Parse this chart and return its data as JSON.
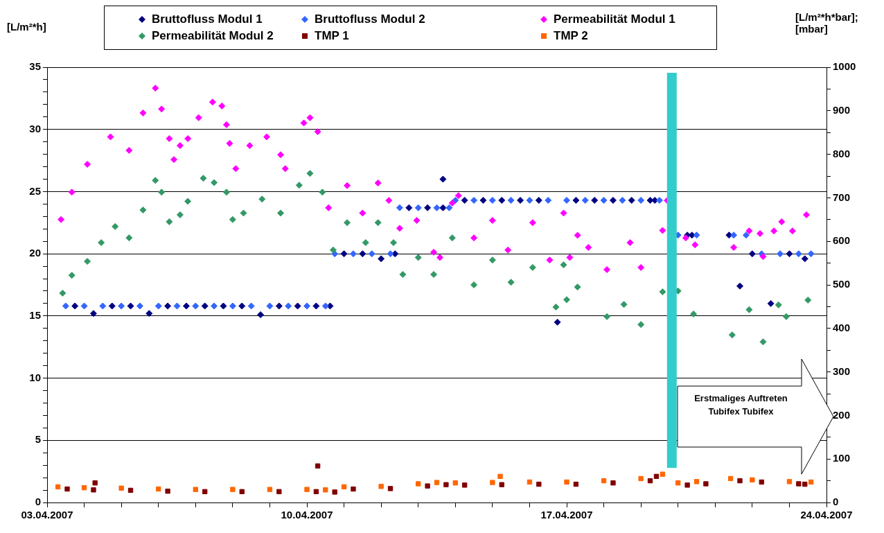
{
  "chart_data": {
    "type": "scatter",
    "ylabel": "[L/m²*h]",
    "y2label": "[L/m²*h*bar]; [mbar]",
    "legend": "top",
    "grid": "y",
    "annotations": [
      "Erstmaliges Auftreten Tubifex Tubifex"
    ],
    "ref_lines": [
      {
        "axis": "x",
        "value": "2007-04-19T20:00",
        "color": "#33cccc"
      }
    ],
    "xlim": [
      "2007-04-03",
      "2007-04-24"
    ],
    "xticks": [
      {
        "value": "2007-04-03",
        "label": "03.04.2007"
      },
      {
        "value": "2007-04-04",
        "label": null
      },
      {
        "value": "2007-04-05",
        "label": null
      },
      {
        "value": "2007-04-06",
        "label": null
      },
      {
        "value": "2007-04-07",
        "label": null
      },
      {
        "value": "2007-04-08",
        "label": null
      },
      {
        "value": "2007-04-09",
        "label": null
      },
      {
        "value": "2007-04-10",
        "label": "10.04.2007"
      },
      {
        "value": "2007-04-11",
        "label": null
      },
      {
        "value": "2007-04-12",
        "label": null
      },
      {
        "value": "2007-04-13",
        "label": null
      },
      {
        "value": "2007-04-14",
        "label": null
      },
      {
        "value": "2007-04-15",
        "label": null
      },
      {
        "value": "2007-04-16",
        "label": null
      },
      {
        "value": "2007-04-17",
        "label": "17.04.2007"
      },
      {
        "value": "2007-04-18",
        "label": null
      },
      {
        "value": "2007-04-19",
        "label": null
      },
      {
        "value": "2007-04-20",
        "label": null
      },
      {
        "value": "2007-04-21",
        "label": null
      },
      {
        "value": "2007-04-22",
        "label": null
      },
      {
        "value": "2007-04-23",
        "label": null
      },
      {
        "value": "2007-04-24",
        "label": "24.04.2007"
      }
    ],
    "ylim": [
      0,
      35
    ],
    "yticks": [
      0,
      {
        "value": 1,
        "label": null
      },
      {
        "value": 2,
        "label": null
      },
      {
        "value": 3,
        "label": null
      },
      {
        "value": 4,
        "label": null
      },
      5,
      {
        "value": 6,
        "label": null
      },
      {
        "value": 7,
        "label": null
      },
      {
        "value": 8,
        "label": null
      },
      {
        "value": 9,
        "label": null
      },
      10,
      {
        "value": 11,
        "label": null
      },
      {
        "value": 12,
        "label": null
      },
      {
        "value": 13,
        "label": null
      },
      {
        "value": 14,
        "label": null
      },
      15,
      {
        "value": 16,
        "label": null
      },
      {
        "value": 17,
        "label": null
      },
      {
        "value": 18,
        "label": null
      },
      {
        "value": 19,
        "label": null
      },
      20,
      {
        "value": 21,
        "label": null
      },
      {
        "value": 22,
        "label": null
      },
      {
        "value": 23,
        "label": null
      },
      {
        "value": 24,
        "label": null
      },
      25,
      {
        "value": 26,
        "label": null
      },
      {
        "value": 27,
        "label": null
      },
      {
        "value": 28,
        "label": null
      },
      {
        "value": 29,
        "label": null
      },
      30,
      {
        "value": 31,
        "label": null
      },
      {
        "value": 32,
        "label": null
      },
      {
        "value": 33,
        "label": null
      },
      {
        "value": 34,
        "label": null
      },
      35
    ],
    "y2lim": [
      0,
      1000
    ],
    "y2ticks": [
      0,
      {
        "value": 50,
        "label": null
      },
      100,
      {
        "value": 150,
        "label": null
      },
      200,
      {
        "value": 250,
        "label": null
      },
      300,
      {
        "value": 350,
        "label": null
      },
      400,
      {
        "value": 450,
        "label": null
      },
      500,
      {
        "value": 550,
        "label": null
      },
      600,
      {
        "value": 650,
        "label": null
      },
      700,
      {
        "value": 750,
        "label": null
      },
      800,
      {
        "value": 850,
        "label": null
      },
      900,
      {
        "value": 950,
        "label": null
      },
      1000
    ],
    "x": [
      "2007-04-03T12:00",
      "2007-04-04T00:00",
      "2007-04-04T12:00",
      "2007-04-05T00:00",
      "2007-04-05T12:00",
      "2007-04-06T00:00",
      "2007-04-06T12:00",
      "2007-04-07T00:00",
      "2007-04-07T12:00",
      "2007-04-08T00:00",
      "2007-04-08T12:00",
      "2007-04-09T00:00",
      "2007-04-09T12:00",
      "2007-04-10T00:00",
      "2007-04-10T12:00",
      "2007-04-10T18:00",
      "2007-04-11T06:00",
      "2007-04-11T18:00",
      "2007-04-12T06:00",
      "2007-04-12T12:00",
      "2007-04-13T00:00",
      "2007-04-13T12:00",
      "2007-04-13T20:00",
      "2007-04-14T00:00",
      "2007-04-14T12:00",
      "2007-04-15T00:00",
      "2007-04-15T12:00",
      "2007-04-16T00:00",
      "2007-04-16T12:00",
      "2007-04-17T00:00",
      "2007-04-17T12:00",
      "2007-04-18T00:00",
      "2007-04-18T12:00",
      "2007-04-19T00:00",
      "2007-04-19T12:00",
      "2007-04-20T00:00",
      "2007-04-20T12:00",
      "2007-04-21T12:00",
      "2007-04-21T20:00",
      "2007-04-22T06:00",
      "2007-04-22T18:00",
      "2007-04-23T06:00",
      "2007-04-23T14:00"
    ],
    "series": [
      {
        "name": "Bruttofluss Modul 1",
        "color": "#000080",
        "marker": "diamond",
        "x": [
          "2007-04-03T18:00",
          "2007-04-04T06:00",
          "2007-04-04T18:00",
          "2007-04-05T06:00",
          "2007-04-05T18:00",
          "2007-04-06T06:00",
          "2007-04-06T18:00",
          "2007-04-07T06:00",
          "2007-04-07T18:00",
          "2007-04-08T06:00",
          "2007-04-08T18:00",
          "2007-04-09T06:00",
          "2007-04-09T18:00",
          "2007-04-10T06:00",
          "2007-04-10T15:00",
          "2007-04-11T00:00",
          "2007-04-11T12:00",
          "2007-04-12T00:00",
          "2007-04-12T09:00",
          "2007-04-12T18:00",
          "2007-04-13T06:00",
          "2007-04-13T16:00",
          "2007-04-13T16:00",
          "2007-04-14T06:00",
          "2007-04-14T18:00",
          "2007-04-15T06:00",
          "2007-04-15T18:00",
          "2007-04-16T06:00",
          "2007-04-16T18:00",
          "2007-04-17T06:00",
          "2007-04-17T18:00",
          "2007-04-18T06:00",
          "2007-04-18T18:00",
          "2007-04-19T06:00",
          "2007-04-19T09:00",
          "2007-04-20T06:00",
          "2007-04-20T09:00",
          "2007-04-21T09:00",
          "2007-04-21T16:00",
          "2007-04-22T00:00",
          "2007-04-22T12:00",
          "2007-04-23T00:00",
          "2007-04-23T10:00"
        ],
        "values": [
          15.8,
          15.2,
          15.8,
          15.8,
          15.2,
          15.8,
          15.8,
          15.8,
          15.8,
          15.8,
          15.1,
          15.8,
          15.8,
          15.8,
          15.8,
          20.0,
          20.0,
          19.6,
          20.0,
          23.7,
          23.7,
          26.0,
          23.7,
          24.3,
          24.3,
          24.3,
          24.3,
          24.3,
          14.5,
          24.3,
          24.3,
          24.3,
          24.3,
          24.3,
          24.3,
          21.5,
          21.5,
          21.5,
          17.4,
          20.0,
          16.0,
          20.0,
          19.6
        ]
      },
      {
        "name": "Bruttofluss Modul 2",
        "color": "#3366ff",
        "marker": "diamond",
        "values": [
          15.8,
          15.8,
          15.8,
          15.8,
          15.8,
          15.8,
          15.8,
          15.8,
          15.8,
          15.8,
          15.8,
          15.8,
          15.8,
          15.8,
          15.8,
          20.0,
          20.0,
          20.0,
          20.0,
          23.7,
          23.7,
          23.7,
          23.7,
          24.3,
          24.3,
          24.3,
          24.3,
          24.3,
          24.3,
          24.3,
          24.3,
          24.3,
          24.3,
          24.3,
          24.3,
          21.5,
          21.5,
          21.5,
          21.5,
          20.0,
          20.0,
          20.0,
          20.0
        ]
      },
      {
        "name": "Permeabilität Modul 1",
        "color": "#ff00ff",
        "marker": "diamond",
        "axis": "y2",
        "x": [
          "2007-04-03T09:00",
          "2007-04-03T16:00",
          "2007-04-04T02:00",
          "2007-04-04T17:00",
          "2007-04-05T05:00",
          "2007-04-05T14:00",
          "2007-04-05T22:00",
          "2007-04-06T02:00",
          "2007-04-06T07:00",
          "2007-04-06T10:00",
          "2007-04-06T14:00",
          "2007-04-06T19:00",
          "2007-04-07T02:00",
          "2007-04-07T11:00",
          "2007-04-07T17:00",
          "2007-04-07T20:00",
          "2007-04-07T22:00",
          "2007-04-08T02:00",
          "2007-04-08T11:00",
          "2007-04-08T22:00",
          "2007-04-09T07:00",
          "2007-04-09T10:00",
          "2007-04-09T22:00",
          "2007-04-10T02:00",
          "2007-04-10T07:00",
          "2007-04-10T14:00",
          "2007-04-11T02:00",
          "2007-04-11T12:00",
          "2007-04-11T22:00",
          "2007-04-12T05:00",
          "2007-04-12T12:00",
          "2007-04-12T23:00",
          "2007-04-13T10:00",
          "2007-04-13T14:00",
          "2007-04-13T22:00",
          "2007-04-14T02:00",
          "2007-04-14T12:00",
          "2007-04-15T00:00",
          "2007-04-15T10:00",
          "2007-04-16T02:00",
          "2007-04-16T13:00",
          "2007-04-16T22:00",
          "2007-04-17T02:00",
          "2007-04-17T07:00",
          "2007-04-17T14:00",
          "2007-04-18T02:00",
          "2007-04-18T17:00",
          "2007-04-19T00:00",
          "2007-04-19T14:00",
          "2007-04-19T17:00",
          "2007-04-20T05:00",
          "2007-04-20T11:00",
          "2007-04-21T12:00",
          "2007-04-21T22:00",
          "2007-04-22T05:00",
          "2007-04-22T07:00",
          "2007-04-22T14:00",
          "2007-04-22T19:00",
          "2007-04-23T02:00",
          "2007-04-23T11:00"
        ],
        "values": [
          650,
          713,
          777,
          840,
          809,
          895,
          952,
          904,
          836,
          788,
          820,
          836,
          884,
          920,
          911,
          868,
          825,
          767,
          820,
          840,
          799,
          767,
          872,
          884,
          852,
          677,
          728,
          665,
          734,
          694,
          630,
          648,
          575,
          563,
          688,
          705,
          608,
          648,
          580,
          643,
          557,
          665,
          563,
          614,
          586,
          535,
          597,
          540,
          625,
          694,
          608,
          592,
          586,
          624,
          618,
          565,
          624,
          645,
          624,
          661
        ]
      },
      {
        "name": "Permeabilität Modul 2",
        "color": "#339966",
        "marker": "diamond",
        "axis": "y2",
        "x": [
          "2007-04-03T10:00",
          "2007-04-03T16:00",
          "2007-04-04T02:00",
          "2007-04-04T11:00",
          "2007-04-04T20:00",
          "2007-04-05T05:00",
          "2007-04-05T14:00",
          "2007-04-05T22:00",
          "2007-04-06T02:00",
          "2007-04-06T07:00",
          "2007-04-06T14:00",
          "2007-04-06T19:00",
          "2007-04-07T05:00",
          "2007-04-07T12:00",
          "2007-04-07T20:00",
          "2007-04-08T00:00",
          "2007-04-08T07:00",
          "2007-04-08T19:00",
          "2007-04-09T07:00",
          "2007-04-09T19:00",
          "2007-04-10T02:00",
          "2007-04-10T10:00",
          "2007-04-10T17:00",
          "2007-04-11T02:00",
          "2007-04-11T14:00",
          "2007-04-11T22:00",
          "2007-04-12T08:00",
          "2007-04-12T14:00",
          "2007-04-13T00:00",
          "2007-04-13T10:00",
          "2007-04-13T22:00",
          "2007-04-14T12:00",
          "2007-04-15T00:00",
          "2007-04-15T12:00",
          "2007-04-16T02:00",
          "2007-04-16T17:00",
          "2007-04-16T22:00",
          "2007-04-17T00:00",
          "2007-04-17T07:00",
          "2007-04-18T02:00",
          "2007-04-18T13:00",
          "2007-04-19T00:00",
          "2007-04-19T14:00",
          "2007-04-20T00:00",
          "2007-04-20T10:00",
          "2007-04-21T11:00",
          "2007-04-21T22:00",
          "2007-04-22T07:00",
          "2007-04-22T17:00",
          "2007-04-22T22:00",
          "2007-04-23T12:00"
        ],
        "values": [
          481,
          522,
          554,
          597,
          634,
          608,
          672,
          740,
          713,
          645,
          661,
          692,
          745,
          735,
          713,
          650,
          665,
          697,
          665,
          729,
          756,
          713,
          580,
          643,
          597,
          643,
          597,
          524,
          563,
          524,
          608,
          500,
          557,
          506,
          540,
          449,
          546,
          466,
          495,
          427,
          455,
          409,
          484,
          486,
          433,
          385,
          443,
          369,
          454,
          427,
          465
        ]
      },
      {
        "name": "TMP 1",
        "color": "#800000",
        "marker": "square",
        "axis": "y2",
        "x": [
          "2007-04-03T13:00",
          "2007-04-04T06:00",
          "2007-04-04T07:00",
          "2007-04-05T06:00",
          "2007-04-06T06:00",
          "2007-04-07T06:00",
          "2007-04-08T06:00",
          "2007-04-09T06:00",
          "2007-04-10T06:00",
          "2007-04-10T07:00",
          "2007-04-10T18:00",
          "2007-04-11T06:00",
          "2007-04-12T06:00",
          "2007-04-13T06:00",
          "2007-04-13T18:00",
          "2007-04-14T06:00",
          "2007-04-15T06:00",
          "2007-04-16T06:00",
          "2007-04-17T06:00",
          "2007-04-18T06:00",
          "2007-04-19T06:00",
          "2007-04-19T10:00",
          "2007-04-20T06:00",
          "2007-04-20T18:00",
          "2007-04-21T16:00",
          "2007-04-22T06:00",
          "2007-04-23T06:00",
          "2007-04-23T10:00"
        ],
        "values": [
          31,
          29,
          45,
          28,
          26,
          25,
          25,
          25,
          25,
          84,
          24,
          31,
          32,
          38,
          41,
          40,
          41,
          42,
          42,
          45,
          50,
          60,
          40,
          43,
          50,
          47,
          43,
          42
        ]
      },
      {
        "name": "TMP 2",
        "color": "#ff6600",
        "marker": "square",
        "axis": "y2",
        "x": [
          "2007-04-03T07:00",
          "2007-04-04T00:00",
          "2007-04-05T00:00",
          "2007-04-06T00:00",
          "2007-04-07T00:00",
          "2007-04-08T00:00",
          "2007-04-09T00:00",
          "2007-04-10T00:00",
          "2007-04-10T12:00",
          "2007-04-11T00:00",
          "2007-04-12T00:00",
          "2007-04-13T00:00",
          "2007-04-13T12:00",
          "2007-04-14T00:00",
          "2007-04-15T00:00",
          "2007-04-15T05:00",
          "2007-04-16T00:00",
          "2007-04-17T00:00",
          "2007-04-18T00:00",
          "2007-04-19T00:00",
          "2007-04-19T14:00",
          "2007-04-20T00:00",
          "2007-04-20T12:00",
          "2007-04-21T10:00",
          "2007-04-22T00:00",
          "2007-04-23T00:00",
          "2007-04-23T14:00"
        ],
        "values": [
          36,
          34,
          33,
          31,
          30,
          30,
          30,
          30,
          29,
          36,
          37,
          43,
          46,
          45,
          46,
          60,
          47,
          47,
          50,
          55,
          65,
          45,
          48,
          55,
          52,
          48,
          47
        ]
      }
    ]
  }
}
